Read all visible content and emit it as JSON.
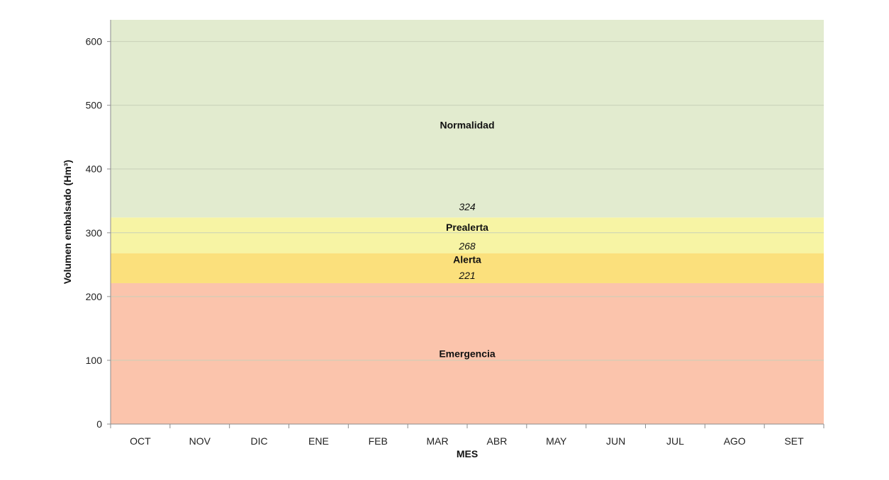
{
  "chart_data": {
    "type": "area",
    "title": "",
    "xlabel": "MES",
    "ylabel": "Volumen embalsado (Hm³)",
    "categories": [
      "OCT",
      "NOV",
      "DIC",
      "ENE",
      "FEB",
      "MAR",
      "ABR",
      "MAY",
      "JUN",
      "JUL",
      "AGO",
      "SET"
    ],
    "ylim": [
      0,
      634
    ],
    "yticks": [
      0,
      100,
      200,
      300,
      400,
      500,
      600
    ],
    "grid": true,
    "zones": [
      {
        "name": "Emergencia",
        "from": 0,
        "to": 221,
        "color": "#fbc4ac"
      },
      {
        "name": "Alerta",
        "from": 221,
        "to": 268,
        "color": "#fbe07c"
      },
      {
        "name": "Prealerta",
        "from": 268,
        "to": 324,
        "color": "#f7f4a4"
      },
      {
        "name": "Normalidad",
        "from": 324,
        "to": 634,
        "color": "#e2ebcf"
      }
    ],
    "thresholds": [
      {
        "value": 324,
        "label": "324"
      },
      {
        "value": 268,
        "label": "268"
      },
      {
        "value": 221,
        "label": "221"
      }
    ]
  }
}
